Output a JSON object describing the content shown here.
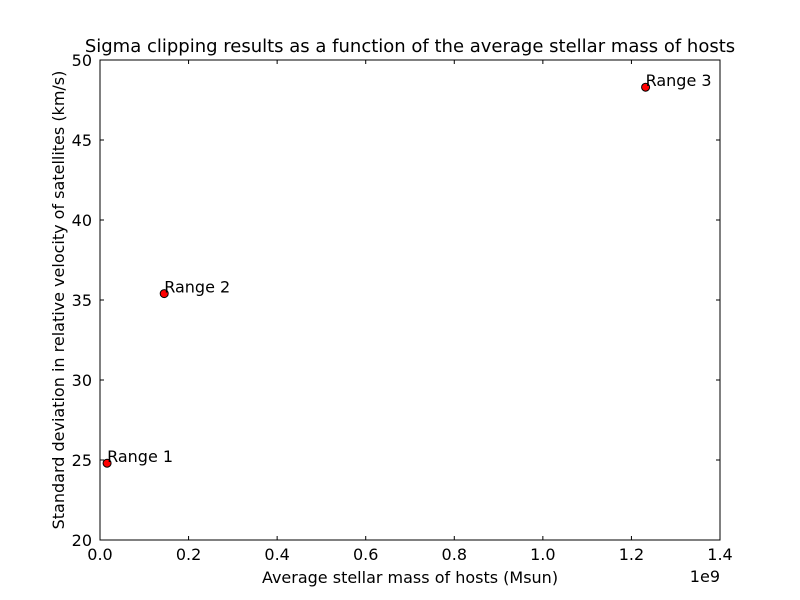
{
  "chart_data": {
    "type": "scatter",
    "title": "Sigma clipping results as a function of the average stellar mass of hosts",
    "xlabel": "Average stellar mass of hosts (Msun)",
    "ylabel": "Standard deviation in relative velocity of satellites (km/s)",
    "x_offset_label": "1e9",
    "xlim": [
      0.0,
      1.4
    ],
    "ylim": [
      20,
      50
    ],
    "x_scale_note": "x values in units of 1e9 Msun",
    "xticks": [
      "0.0",
      "0.2",
      "0.4",
      "0.6",
      "0.8",
      "1.0",
      "1.2",
      "1.4"
    ],
    "yticks": [
      "20",
      "25",
      "30",
      "35",
      "40",
      "45",
      "50"
    ],
    "grid": false,
    "marker_color": "#ff0000",
    "points": [
      {
        "label": "Range 1",
        "x": 0.016,
        "y": 24.8
      },
      {
        "label": "Range 2",
        "x": 0.145,
        "y": 35.4
      },
      {
        "label": "Range 3",
        "x": 1.232,
        "y": 48.3
      }
    ]
  }
}
